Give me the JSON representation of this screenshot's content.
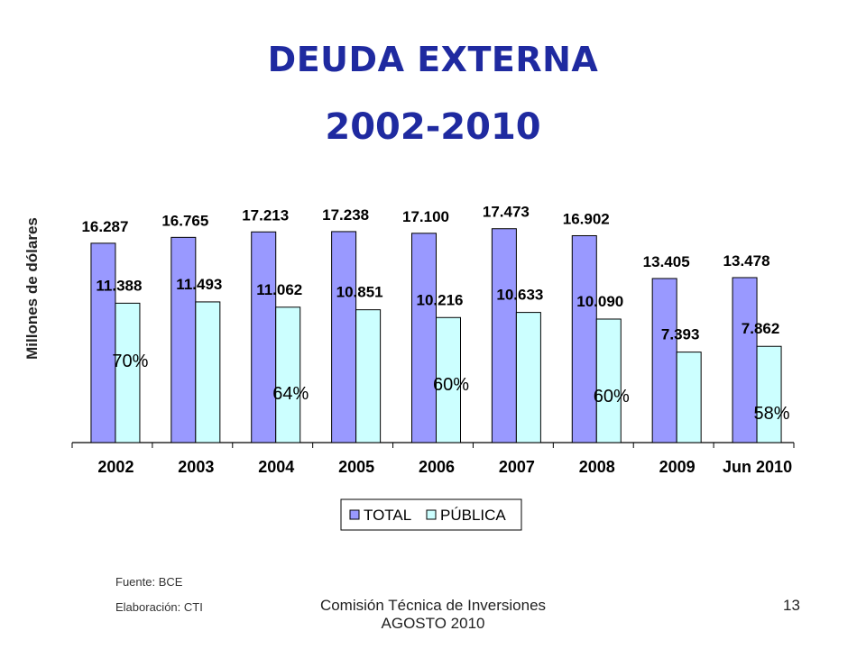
{
  "slide": {
    "title_line1": "DEUDA EXTERNA",
    "title_line2": "2002-2010",
    "source": "Fuente: BCE",
    "elaboration": "Elaboración: CTI",
    "footer_line1": "Comisión Técnica de Inversiones",
    "footer_line2": "AGOSTO 2010",
    "page_number": "13"
  },
  "chart_data": {
    "type": "bar",
    "ylabel": "Millones de dólares",
    "categories": [
      "2002",
      "2003",
      "2004",
      "2005",
      "2006",
      "2007",
      "2008",
      "2009",
      "Jun 2010"
    ],
    "series": [
      {
        "name": "TOTAL",
        "color": "#9999ff",
        "values": [
          16287,
          16765,
          17213,
          17238,
          17100,
          17473,
          16902,
          13405,
          13478
        ],
        "labels": [
          "16.287",
          "16.765",
          "17.213",
          "17.238",
          "17.100",
          "17.473",
          "16.902",
          "13.405",
          "13.478"
        ]
      },
      {
        "name": "PÚBLICA",
        "color": "#ccffff",
        "values": [
          11388,
          11493,
          11062,
          10851,
          10216,
          10633,
          10090,
          7393,
          7862
        ],
        "labels": [
          "11.388",
          "11.493",
          "11.062",
          "10.851",
          "10.216",
          "10.633",
          "10.090",
          "7.393",
          "7.862"
        ]
      }
    ],
    "annotations": [
      {
        "category": "2002",
        "text": "70%"
      },
      {
        "category": "2004",
        "text": "64%"
      },
      {
        "category": "2006",
        "text": "60%"
      },
      {
        "category": "2008",
        "text": "60%"
      },
      {
        "category": "Jun 2010",
        "text": "58%"
      }
    ],
    "ylim": [
      0,
      19000
    ],
    "grid": false,
    "legend": "bottom"
  }
}
